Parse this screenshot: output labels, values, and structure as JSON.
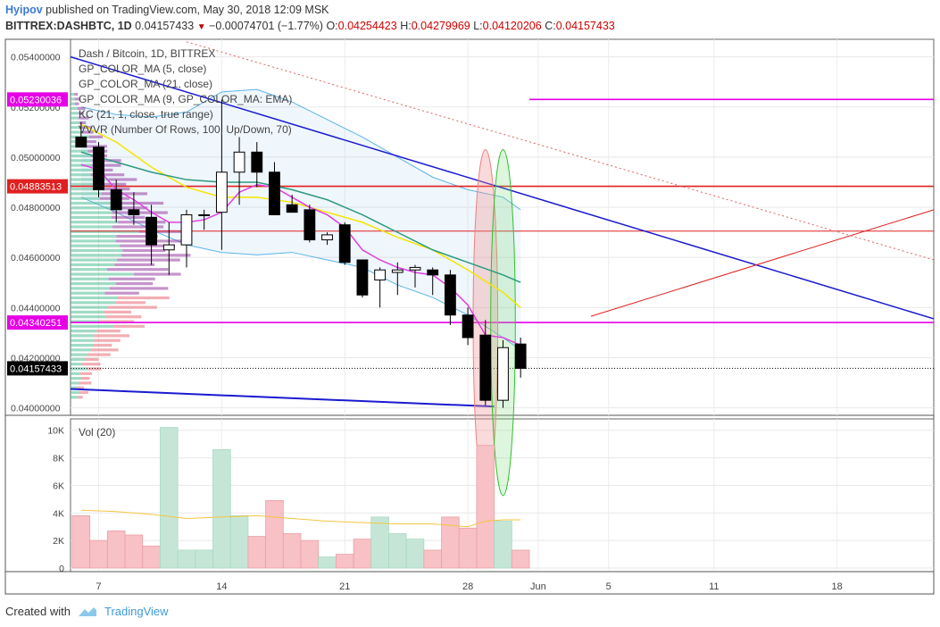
{
  "header": {
    "author": "Hyipov",
    "published_text": "published on TradingView.com, May 30, 2018 12:09 MSK",
    "symbol_line": "BITTREX:DASHBTC, 1D",
    "last": "0.04157433",
    "change": "−0.00074701 (−1.77%)",
    "o_label": "O:",
    "o": "0.04254423",
    "h_label": "H:",
    "h": "0.04279969",
    "l_label": "L:",
    "l": "0.04120206",
    "c_label": "C:",
    "c": "0.04157433"
  },
  "indicators": [
    "Dash / Bitcoin, 1D, BITTREX",
    "GP_COLOR_MA (5, close)",
    "GP_COLOR_MA (21, close)",
    "GP_COLOR_MA (9, GP_COLOR_MA: EMA)",
    "KC (21, 1, close, true range)",
    "VVVR (Number Of Rows, 100, Up/Down, 70)"
  ],
  "volume_label": "Vol (20)",
  "footer": {
    "created_with": "Created with",
    "brand": "TradingView"
  },
  "colors": {
    "up": "#ffffff",
    "down": "#000000",
    "vol_up": "#c5e6d7",
    "vol_down": "#f7c1c5",
    "magenta": "#e600e6",
    "red": "#e02020",
    "blue": "#1a1ad0"
  },
  "chart_data": {
    "type": "candlestick",
    "price_axis": {
      "ylim": [
        0.0397,
        0.0547
      ],
      "ticks": [
        0.054,
        0.052,
        0.05,
        0.048,
        0.046,
        0.044,
        0.042,
        0.04
      ],
      "tick_labels": [
        "0.05400000",
        "0.05200000",
        "0.05000000",
        "0.04800000",
        "0.04600000",
        "0.04400000",
        "0.04200000",
        "0.04000000"
      ]
    },
    "volume_axis": {
      "ylim": [
        0,
        10500
      ],
      "ticks": [
        0,
        2000,
        4000,
        6000,
        8000,
        10000
      ],
      "tick_labels": [
        "0",
        "2K",
        "4K",
        "6K",
        "8K",
        "10K"
      ]
    },
    "x_ticks": [
      {
        "day": 7,
        "label": "7"
      },
      {
        "day": 14,
        "label": "14"
      },
      {
        "day": 21,
        "label": "21"
      },
      {
        "day": 28,
        "label": "28"
      },
      {
        "day": 32,
        "label": "Jun"
      },
      {
        "day": 36,
        "label": "5"
      },
      {
        "day": 42,
        "label": "11"
      },
      {
        "day": 49,
        "label": "18"
      }
    ],
    "x_range": [
      5.4,
      54.5
    ],
    "candles": [
      {
        "day": 6,
        "o": 0.0508,
        "h": 0.0514,
        "l": 0.0504,
        "c": 0.0504,
        "v": 3800
      },
      {
        "day": 7,
        "o": 0.0504,
        "h": 0.0506,
        "l": 0.0484,
        "c": 0.0487,
        "v": 2000
      },
      {
        "day": 8,
        "o": 0.0487,
        "h": 0.0491,
        "l": 0.0474,
        "c": 0.0479,
        "v": 2700
      },
      {
        "day": 9,
        "o": 0.0479,
        "h": 0.0486,
        "l": 0.0473,
        "c": 0.0477,
        "v": 2400
      },
      {
        "day": 10,
        "o": 0.0476,
        "h": 0.0481,
        "l": 0.0457,
        "c": 0.0465,
        "v": 1600
      },
      {
        "day": 11,
        "o": 0.0463,
        "h": 0.0474,
        "l": 0.0453,
        "c": 0.0465,
        "v": 10200
      },
      {
        "day": 12,
        "o": 0.0465,
        "h": 0.0479,
        "l": 0.0456,
        "c": 0.0477,
        "v": 1300
      },
      {
        "day": 13,
        "o": 0.0477,
        "h": 0.0479,
        "l": 0.0471,
        "c": 0.0477,
        "v": 1300
      },
      {
        "day": 14,
        "o": 0.0478,
        "h": 0.0523,
        "l": 0.0463,
        "c": 0.0494,
        "v": 8600
      },
      {
        "day": 15,
        "o": 0.0494,
        "h": 0.0508,
        "l": 0.0481,
        "c": 0.0502,
        "v": 3800
      },
      {
        "day": 16,
        "o": 0.0502,
        "h": 0.0506,
        "l": 0.0488,
        "c": 0.0494,
        "v": 2300
      },
      {
        "day": 17,
        "o": 0.0494,
        "h": 0.0498,
        "l": 0.0477,
        "c": 0.0477,
        "v": 4900
      },
      {
        "day": 18,
        "o": 0.0481,
        "h": 0.0485,
        "l": 0.0478,
        "c": 0.0478,
        "v": 2500
      },
      {
        "day": 19,
        "o": 0.0479,
        "h": 0.0481,
        "l": 0.0466,
        "c": 0.0467,
        "v": 2000
      },
      {
        "day": 20,
        "o": 0.0467,
        "h": 0.047,
        "l": 0.0465,
        "c": 0.0469,
        "v": 800
      },
      {
        "day": 21,
        "o": 0.0473,
        "h": 0.0474,
        "l": 0.0457,
        "c": 0.0458,
        "v": 1000
      },
      {
        "day": 22,
        "o": 0.0459,
        "h": 0.0459,
        "l": 0.0444,
        "c": 0.0445,
        "v": 2100
      },
      {
        "day": 23,
        "o": 0.0451,
        "h": 0.0456,
        "l": 0.044,
        "c": 0.0455,
        "v": 3700
      },
      {
        "day": 24,
        "o": 0.0454,
        "h": 0.0458,
        "l": 0.0445,
        "c": 0.0455,
        "v": 2500
      },
      {
        "day": 25,
        "o": 0.0455,
        "h": 0.0457,
        "l": 0.0448,
        "c": 0.0456,
        "v": 2100
      },
      {
        "day": 26,
        "o": 0.0455,
        "h": 0.0456,
        "l": 0.0445,
        "c": 0.0453,
        "v": 1300
      },
      {
        "day": 27,
        "o": 0.0453,
        "h": 0.0455,
        "l": 0.0433,
        "c": 0.0437,
        "v": 3700
      },
      {
        "day": 28,
        "o": 0.0437,
        "h": 0.044,
        "l": 0.0425,
        "c": 0.0428,
        "v": 2900
      },
      {
        "day": 29,
        "o": 0.0429,
        "h": 0.0435,
        "l": 0.0401,
        "c": 0.0403,
        "v": 8900
      },
      {
        "day": 30,
        "o": 0.0403,
        "h": 0.0427,
        "l": 0.04,
        "c": 0.0424,
        "v": 3400
      },
      {
        "day": 31,
        "o": 0.04254423,
        "h": 0.04279969,
        "l": 0.04120206,
        "c": 0.04157433,
        "v": 1300
      }
    ],
    "price_labels": [
      {
        "value": 0.05230036,
        "label": "0.05230036",
        "color": "#e600e6"
      },
      {
        "value": 0.04883513,
        "label": "0.04883513",
        "color": "#e02020"
      },
      {
        "value": 0.04340251,
        "label": "0.04340251",
        "color": "#e600e6"
      },
      {
        "value": 0.04157433,
        "label": "0.04157433",
        "color": "#000000"
      }
    ],
    "hlines": [
      {
        "value": 0.05230036,
        "from_day": 31.5,
        "color": "#e600e6"
      },
      {
        "value": 0.04883513,
        "from_day": 5.4,
        "color": "#e02020"
      },
      {
        "value": 0.04705,
        "from_day": 5.4,
        "color": "#e02020",
        "thin": true
      },
      {
        "value": 0.04340251,
        "from_day": 5.4,
        "color": "#e600e6"
      }
    ],
    "trendlines": [
      {
        "p1": [
          5.4,
          0.054
        ],
        "p2": [
          54.5,
          0.04355
        ],
        "color": "#1a1ad0",
        "width": 1.5
      },
      {
        "p1": [
          5.4,
          0.04075
        ],
        "p2": [
          29.5,
          0.04005
        ],
        "color": "#1a1ad0",
        "width": 2
      },
      {
        "p1": [
          35,
          0.04365
        ],
        "p2": [
          54.5,
          0.0479
        ],
        "color": "#e02020",
        "width": 1
      },
      {
        "p1": [
          12,
          0.0546
        ],
        "p2": [
          54.5,
          0.0459
        ],
        "color": "#e06060",
        "width": 1,
        "dashed": true
      }
    ],
    "ma_fast": [
      [
        6,
        0.0497
      ],
      [
        7,
        0.0495
      ],
      [
        8,
        0.0487
      ],
      [
        9,
        0.0483
      ],
      [
        10,
        0.0478
      ],
      [
        11,
        0.0474
      ],
      [
        12,
        0.0474
      ],
      [
        13,
        0.0475
      ],
      [
        14,
        0.0478
      ],
      [
        15,
        0.0486
      ],
      [
        16,
        0.0489
      ],
      [
        17,
        0.0488
      ],
      [
        18,
        0.0484
      ],
      [
        19,
        0.048
      ],
      [
        20,
        0.0477
      ],
      [
        21,
        0.0472
      ],
      [
        22,
        0.0463
      ],
      [
        23,
        0.0459
      ],
      [
        24,
        0.0456
      ],
      [
        25,
        0.0454
      ],
      [
        26,
        0.0453
      ],
      [
        27,
        0.0448
      ],
      [
        28,
        0.0441
      ],
      [
        29,
        0.0429
      ],
      [
        30,
        0.0428
      ],
      [
        31,
        0.0425
      ]
    ],
    "ma_slow": [
      [
        6,
        0.0502
      ],
      [
        8,
        0.0498
      ],
      [
        10,
        0.0494
      ],
      [
        12,
        0.0491
      ],
      [
        14,
        0.049
      ],
      [
        16,
        0.049
      ],
      [
        18,
        0.0487
      ],
      [
        20,
        0.0483
      ],
      [
        22,
        0.0477
      ],
      [
        24,
        0.047
      ],
      [
        26,
        0.0463
      ],
      [
        28,
        0.0458
      ],
      [
        30,
        0.0453
      ],
      [
        31,
        0.045
      ]
    ],
    "ma_ema": [
      [
        6,
        0.0513
      ],
      [
        8,
        0.0506
      ],
      [
        10,
        0.0496
      ],
      [
        12,
        0.0488
      ],
      [
        14,
        0.0484
      ],
      [
        16,
        0.0484
      ],
      [
        18,
        0.0482
      ],
      [
        20,
        0.0478
      ],
      [
        22,
        0.0474
      ],
      [
        24,
        0.0468
      ],
      [
        26,
        0.0463
      ],
      [
        28,
        0.0455
      ],
      [
        30,
        0.0446
      ],
      [
        31,
        0.044
      ]
    ],
    "kc_upper": [
      [
        6,
        0.052
      ],
      [
        8,
        0.0517
      ],
      [
        10,
        0.0516
      ],
      [
        12,
        0.0518
      ],
      [
        14,
        0.0526
      ],
      [
        16,
        0.0527
      ],
      [
        18,
        0.0522
      ],
      [
        20,
        0.0515
      ],
      [
        22,
        0.0508
      ],
      [
        24,
        0.05
      ],
      [
        26,
        0.0492
      ],
      [
        28,
        0.0487
      ],
      [
        30,
        0.0484
      ],
      [
        31,
        0.0479
      ]
    ],
    "kc_lower": [
      [
        6,
        0.0484
      ],
      [
        8,
        0.0478
      ],
      [
        10,
        0.0471
      ],
      [
        12,
        0.0465
      ],
      [
        14,
        0.0462
      ],
      [
        16,
        0.0461
      ],
      [
        18,
        0.0462
      ],
      [
        20,
        0.0459
      ],
      [
        22,
        0.0456
      ],
      [
        24,
        0.0449
      ],
      [
        26,
        0.0444
      ],
      [
        28,
        0.0437
      ],
      [
        30,
        0.0428
      ],
      [
        31,
        0.0423
      ]
    ],
    "vol_ma": [
      [
        6,
        4200
      ],
      [
        8,
        4100
      ],
      [
        10,
        3900
      ],
      [
        12,
        3600
      ],
      [
        14,
        3700
      ],
      [
        16,
        3800
      ],
      [
        18,
        3600
      ],
      [
        20,
        3400
      ],
      [
        22,
        3300
      ],
      [
        24,
        3200
      ],
      [
        26,
        3200
      ],
      [
        28,
        3000
      ],
      [
        29,
        3400
      ],
      [
        30,
        3500
      ],
      [
        31,
        3500
      ]
    ],
    "ellipses": [
      {
        "cx_day": 29,
        "cy": 0.0434,
        "ry": 0.0069,
        "rx_days": 0.7,
        "color": "#f08080",
        "fill": "rgba(240,150,150,0.35)"
      },
      {
        "cx_day": 30,
        "cy": 0.0434,
        "ry": 0.0069,
        "rx_days": 0.7,
        "color": "#30c030",
        "fill": "rgba(120,220,120,0.25)"
      }
    ]
  }
}
